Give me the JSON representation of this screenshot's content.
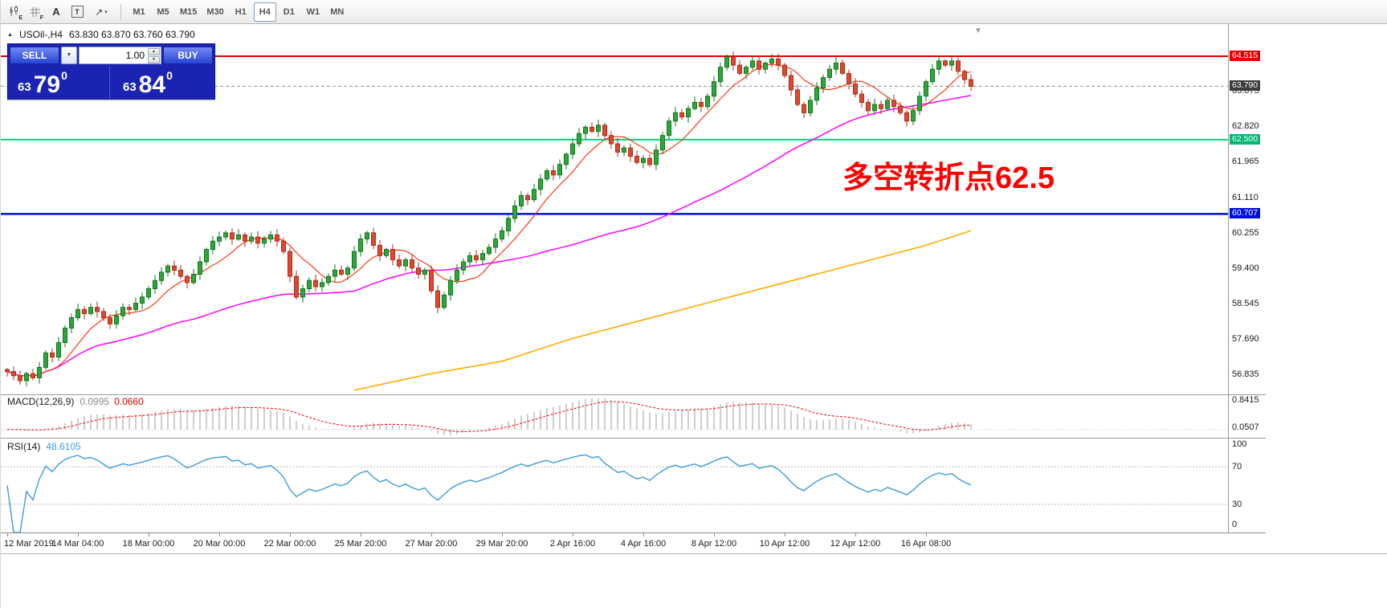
{
  "toolbar": {
    "icons": [
      {
        "name": "chart-tool",
        "label": "E"
      },
      {
        "name": "grid-tool",
        "label": "F"
      },
      {
        "name": "font-tool",
        "label": "A"
      },
      {
        "name": "textbox-tool",
        "label": "T"
      },
      {
        "name": "line-tools",
        "label": "↗"
      }
    ],
    "dropdown_caret": "▾",
    "timeframes": [
      {
        "label": "M1",
        "active": false
      },
      {
        "label": "M5",
        "active": false
      },
      {
        "label": "M15",
        "active": false
      },
      {
        "label": "M30",
        "active": false
      },
      {
        "label": "H1",
        "active": false
      },
      {
        "label": "H4",
        "active": true
      },
      {
        "label": "D1",
        "active": false
      },
      {
        "label": "W1",
        "active": false
      },
      {
        "label": "MN",
        "active": false
      }
    ]
  },
  "symbol_header": {
    "expand_icon": "▲",
    "symbol": "USOil-,H4",
    "ohlc": "63.830 63.870 63.760 63.790"
  },
  "trade_panel": {
    "sell_label": "SELL",
    "buy_label": "BUY",
    "volume": "1.00",
    "dropdown_icon": "▼",
    "spin_up_icon": "▲",
    "spin_down_icon": "▼",
    "sell_price_small": "63",
    "sell_price_big": "79",
    "sell_price_sup": "0",
    "buy_price_small": "63",
    "buy_price_big": "84",
    "buy_price_sup": "0"
  },
  "annotation": {
    "text": "多空转折点62.5",
    "color": "#ff0000"
  },
  "shift_marker_icon": "▼",
  "macd": {
    "name": "MACD(12,26,9)",
    "value_main": "0.0995",
    "value_signal": "0.0660",
    "scale_top": "0.8415",
    "scale_bottom": "0.0507"
  },
  "rsi": {
    "name": "RSI(14)",
    "value": "48.6105",
    "levels": [
      "100",
      "70",
      "30",
      "0"
    ]
  },
  "chart_data": {
    "type": "candlestick",
    "symbol": "USOil-",
    "timeframe": "H4",
    "title": "USOil- H4 candlestick chart with SMA fast/mid/slow, MACD(12,26,9), RSI(14)",
    "x_axis": "time, H4 bars from 12 Mar 2019 to 16 Apr 2019",
    "ylim": [
      56.35,
      65.3
    ],
    "current_price": 63.79,
    "current_ohlc": {
      "open": 63.83,
      "high": 63.87,
      "low": 63.76,
      "close": 63.79
    },
    "hlines": [
      {
        "price": 64.515,
        "color": "#e00000",
        "width": 2
      },
      {
        "price": 62.5,
        "color": "#00d87a",
        "width": 2
      },
      {
        "price": 60.707,
        "color": "#0010d8",
        "width": 2.5
      }
    ],
    "yticks": [
      "63.675",
      "62.820",
      "61.965",
      "61.110",
      "60.255",
      "59.400",
      "58.545",
      "57.690",
      "56.835"
    ],
    "axis_tags": [
      {
        "text": "64.515",
        "bg": "#e00000"
      },
      {
        "text": "63.790",
        "bg": "#3c3c3c"
      },
      {
        "text": "62.500",
        "bg": "#00b873"
      },
      {
        "text": "60.707",
        "bg": "#0010d8"
      }
    ],
    "time_labels": [
      {
        "i": 0,
        "t": "12 Mar 2019"
      },
      {
        "i": 11,
        "t": "14 Mar 04:00"
      },
      {
        "i": 22,
        "t": "18 Mar 00:00"
      },
      {
        "i": 33,
        "t": "20 Mar 00:00"
      },
      {
        "i": 44,
        "t": "22 Mar 00:00"
      },
      {
        "i": 55,
        "t": "25 Mar 20:00"
      },
      {
        "i": 66,
        "t": "27 Mar 20:00"
      },
      {
        "i": 77,
        "t": "29 Mar 20:00"
      },
      {
        "i": 88,
        "t": "2 Apr 16:00"
      },
      {
        "i": 99,
        "t": "4 Apr 16:00"
      },
      {
        "i": 110,
        "t": "8 Apr 12:00"
      },
      {
        "i": 121,
        "t": "10 Apr 12:00"
      },
      {
        "i": 132,
        "t": "12 Apr 12:00"
      },
      {
        "i": 143,
        "t": "16 Apr 08:00"
      }
    ],
    "closes": [
      56.9,
      56.8,
      56.68,
      56.85,
      56.75,
      57.0,
      57.35,
      57.25,
      57.6,
      57.95,
      58.2,
      58.4,
      58.3,
      58.45,
      58.35,
      58.2,
      58.05,
      58.25,
      58.45,
      58.4,
      58.55,
      58.7,
      58.9,
      59.1,
      59.3,
      59.45,
      59.35,
      59.2,
      59.05,
      59.25,
      59.55,
      59.85,
      60.05,
      60.15,
      60.25,
      60.1,
      60.2,
      60.05,
      60.15,
      60.0,
      60.1,
      60.2,
      60.05,
      59.8,
      59.2,
      58.7,
      58.9,
      59.1,
      58.95,
      59.05,
      59.2,
      59.35,
      59.25,
      59.4,
      59.8,
      60.1,
      60.25,
      59.95,
      59.7,
      59.85,
      59.6,
      59.45,
      59.6,
      59.4,
      59.25,
      59.35,
      58.85,
      58.45,
      58.75,
      59.1,
      59.35,
      59.55,
      59.7,
      59.6,
      59.75,
      59.9,
      60.1,
      60.3,
      60.6,
      60.9,
      61.15,
      61.05,
      61.3,
      61.55,
      61.75,
      61.65,
      61.9,
      62.15,
      62.4,
      62.65,
      62.8,
      62.7,
      62.85,
      62.6,
      62.4,
      62.2,
      62.3,
      62.1,
      61.95,
      62.05,
      61.9,
      62.25,
      62.6,
      62.95,
      63.15,
      63.05,
      63.25,
      63.4,
      63.3,
      63.55,
      63.9,
      64.25,
      64.5,
      64.3,
      64.1,
      64.25,
      64.4,
      64.2,
      64.35,
      64.45,
      64.3,
      64.05,
      63.7,
      63.35,
      63.15,
      63.45,
      63.75,
      64.0,
      64.2,
      64.35,
      64.1,
      63.85,
      63.6,
      63.4,
      63.2,
      63.35,
      63.25,
      63.45,
      63.3,
      63.15,
      62.95,
      63.2,
      63.55,
      63.9,
      64.2,
      64.4,
      64.3,
      64.4,
      64.15,
      63.95,
      63.79
    ],
    "ma_fast_period": 8,
    "ma_mid_period": 55,
    "ma_slow_points": [
      [
        54,
        56.45
      ],
      [
        66,
        56.85
      ],
      [
        77,
        57.15
      ],
      [
        88,
        57.7
      ],
      [
        99,
        58.15
      ],
      [
        110,
        58.6
      ],
      [
        121,
        59.05
      ],
      [
        132,
        59.5
      ],
      [
        143,
        59.95
      ],
      [
        150,
        60.3
      ]
    ],
    "colors": {
      "up": "#2ba83a",
      "up_stroke": "#15731f",
      "down": "#e2462e",
      "down_stroke": "#a8301c",
      "ma_fast": "#ff2600",
      "ma_mid": "#ff00ff",
      "ma_slow": "#ffaa00",
      "macd_hist": "#b8b8b8",
      "macd_signal": "#ff0000",
      "rsi": "#3f9bd8",
      "hline_resistance": "#e00000",
      "hline_pivot": "#00d87a",
      "hline_support": "#0010d8"
    }
  }
}
